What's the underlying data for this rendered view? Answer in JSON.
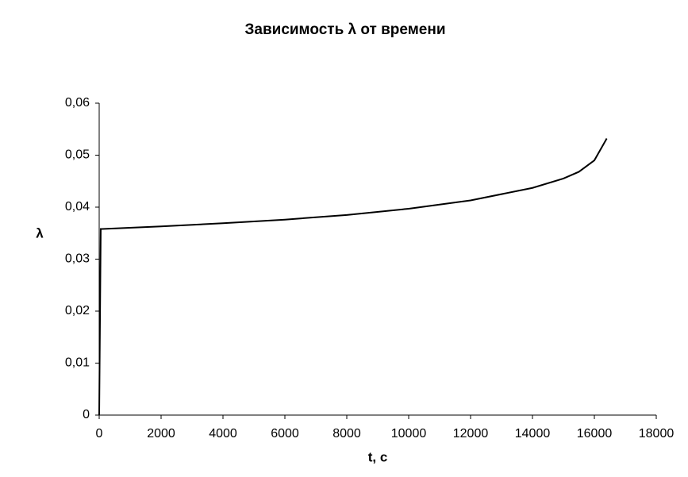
{
  "chart_data": {
    "type": "line",
    "title": "Зависимость λ от времени",
    "x_label": "t, c",
    "y_label": "λ",
    "x": [
      0,
      50,
      100,
      2000,
      4000,
      6000,
      8000,
      10000,
      12000,
      14000,
      15000,
      15500,
      16000,
      16400
    ],
    "series": [
      {
        "name": "λ",
        "color": "#000000",
        "values": [
          0,
          0.0358,
          0.0358,
          0.0363,
          0.0369,
          0.0376,
          0.0385,
          0.0397,
          0.0413,
          0.0437,
          0.0455,
          0.0468,
          0.049,
          0.0532
        ]
      }
    ],
    "xlim": [
      0,
      18000
    ],
    "xticks": [
      0,
      2000,
      4000,
      6000,
      8000,
      10000,
      12000,
      14000,
      16000,
      18000
    ],
    "ylim": [
      0,
      0.06
    ],
    "yticks": [
      0,
      {
        "value": 0.01,
        "label": "0,01"
      },
      {
        "value": 0.02,
        "label": "0,02"
      },
      {
        "value": 0.03,
        "label": "0,03"
      },
      {
        "value": 0.04,
        "label": "0,04"
      },
      {
        "value": 0.05,
        "label": "0,05"
      },
      {
        "value": 0.06,
        "label": "0,06"
      }
    ],
    "grid": false
  }
}
